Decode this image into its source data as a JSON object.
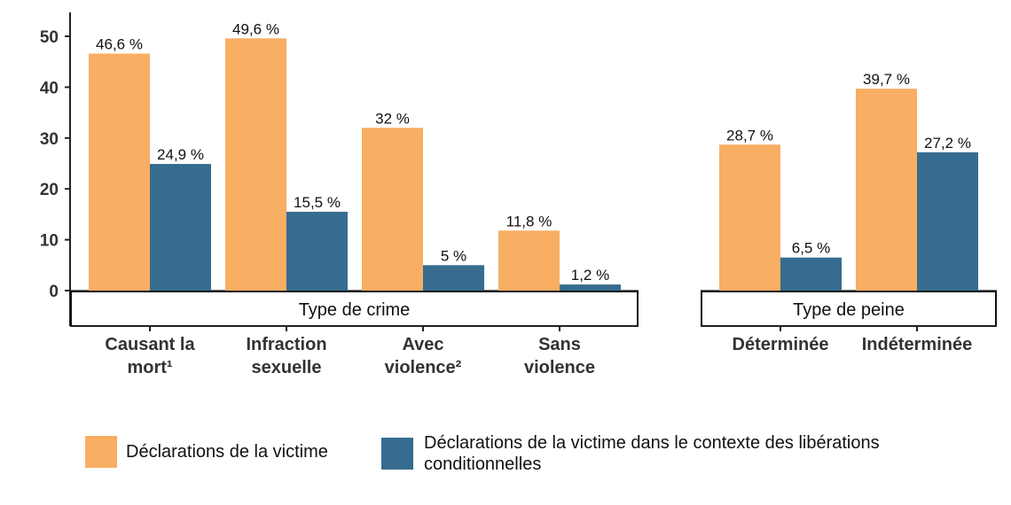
{
  "colors": {
    "series1": "#F8AE63",
    "series2": "#366C8F",
    "axis": "#222222"
  },
  "chart_data": {
    "type": "bar",
    "ylim": [
      0,
      55
    ],
    "yticks": [
      "0",
      "10",
      "20",
      "30",
      "40",
      "50"
    ],
    "grid": false,
    "legend_position": "bottom",
    "panels": [
      {
        "strip": "Type de crime",
        "categories": [
          [
            "Causant la",
            "mort¹"
          ],
          [
            "Infraction",
            "sexuelle"
          ],
          [
            "Avec",
            "violence²"
          ],
          [
            "Sans",
            "violence"
          ]
        ],
        "series": [
          {
            "name": "Déclarations de la victime",
            "values": [
              46.6,
              49.6,
              32,
              11.8
            ],
            "labels": [
              "46,6 %",
              "49,6 %",
              "32 %",
              "11,8 %"
            ]
          },
          {
            "name": "Déclarations de la victime dans le contexte des libérations conditionnelles",
            "values": [
              24.9,
              15.5,
              5,
              1.2
            ],
            "labels": [
              "24,9 %",
              "15,5 %",
              "5 %",
              "1,2 %"
            ]
          }
        ]
      },
      {
        "strip": "Type de peine",
        "categories": [
          [
            "Déterminée"
          ],
          [
            "Indéterminée"
          ]
        ],
        "series": [
          {
            "name": "Déclarations de la victime",
            "values": [
              28.7,
              39.7
            ],
            "labels": [
              "28,7 %",
              "39,7 %"
            ]
          },
          {
            "name": "Déclarations de la victime dans le contexte des libérations conditionnelles",
            "values": [
              6.5,
              27.2
            ],
            "labels": [
              "6,5 %",
              "27,2 %"
            ]
          }
        ]
      }
    ]
  },
  "legend": {
    "items": [
      {
        "label_lines": [
          "Déclarations de la victime"
        ]
      },
      {
        "label_lines": [
          "Déclarations de la victime dans le contexte des libérations",
          "conditionnelles"
        ]
      }
    ]
  }
}
